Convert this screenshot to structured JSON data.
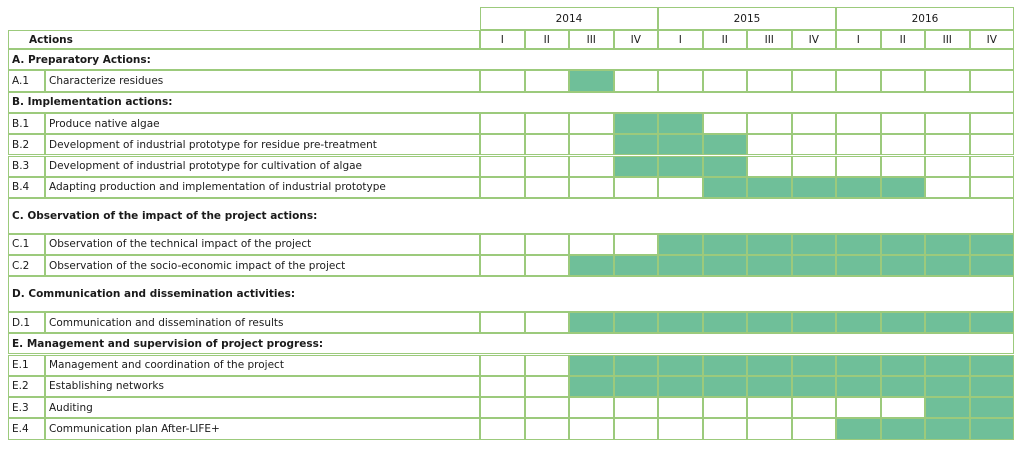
{
  "header": {
    "actions_label": "Actions",
    "years": [
      "2014",
      "2015",
      "2016"
    ],
    "quarters": [
      "I",
      "II",
      "III",
      "IV",
      "I",
      "II",
      "III",
      "IV",
      "I",
      "II",
      "III",
      "IV"
    ]
  },
  "colors": {
    "bar": "#6fbf99",
    "border": "#9cca7c"
  },
  "rows": [
    {
      "type": "section",
      "label": "A.  Preparatory Actions:"
    },
    {
      "type": "task",
      "id": "A.1",
      "label": "Characterize residues",
      "filled": [
        2
      ]
    },
    {
      "type": "section",
      "label": "B. Implementation actions:"
    },
    {
      "type": "task",
      "id": "B.1",
      "label": "Produce native algae",
      "filled": [
        3,
        4
      ]
    },
    {
      "type": "task",
      "id": "B.2",
      "label": "Development of industrial prototype for residue pre-treatment",
      "filled": [
        3,
        4,
        5
      ]
    },
    {
      "type": "task",
      "id": "B.3",
      "label": "Development of industrial prototype for cultivation of algae",
      "filled": [
        3,
        4,
        5
      ]
    },
    {
      "type": "task",
      "id": "B.4",
      "label": "Adapting  production and implementation of industrial prototype",
      "filled": [
        5,
        6,
        7,
        8,
        9
      ]
    },
    {
      "type": "section",
      "label": "C. Observation of the impact of the project actions:",
      "tall": true
    },
    {
      "type": "task",
      "id": "C.1",
      "label": "Observation of the technical impact of the project",
      "filled": [
        4,
        5,
        6,
        7,
        8,
        9,
        10,
        11
      ]
    },
    {
      "type": "task",
      "id": "C.2",
      "label": "Observation of the socio-economic impact of the project",
      "filled": [
        2,
        3,
        4,
        5,
        6,
        7,
        8,
        9,
        10,
        11
      ]
    },
    {
      "type": "section",
      "label": "D.  Communication and dissemination activities:",
      "tall": true
    },
    {
      "type": "task",
      "id": "D.1",
      "label": "Communication and dissemination of results",
      "filled": [
        2,
        3,
        4,
        5,
        6,
        7,
        8,
        9,
        10,
        11
      ]
    },
    {
      "type": "section",
      "label": "E. Management and supervision of project progress:"
    },
    {
      "type": "task",
      "id": "E.1",
      "label": "Management and coordination of the project",
      "filled": [
        2,
        3,
        4,
        5,
        6,
        7,
        8,
        9,
        10,
        11
      ]
    },
    {
      "type": "task",
      "id": "E.2",
      "label": "Establishing  networks",
      "filled": [
        2,
        3,
        4,
        5,
        6,
        7,
        8,
        9,
        10,
        11
      ]
    },
    {
      "type": "task",
      "id": "E.3",
      "label": "Auditing",
      "filled": [
        10,
        11
      ]
    },
    {
      "type": "task",
      "id": "E.4",
      "label": "Communication plan After-LIFE+",
      "filled": [
        8,
        9,
        10,
        11
      ]
    }
  ]
}
